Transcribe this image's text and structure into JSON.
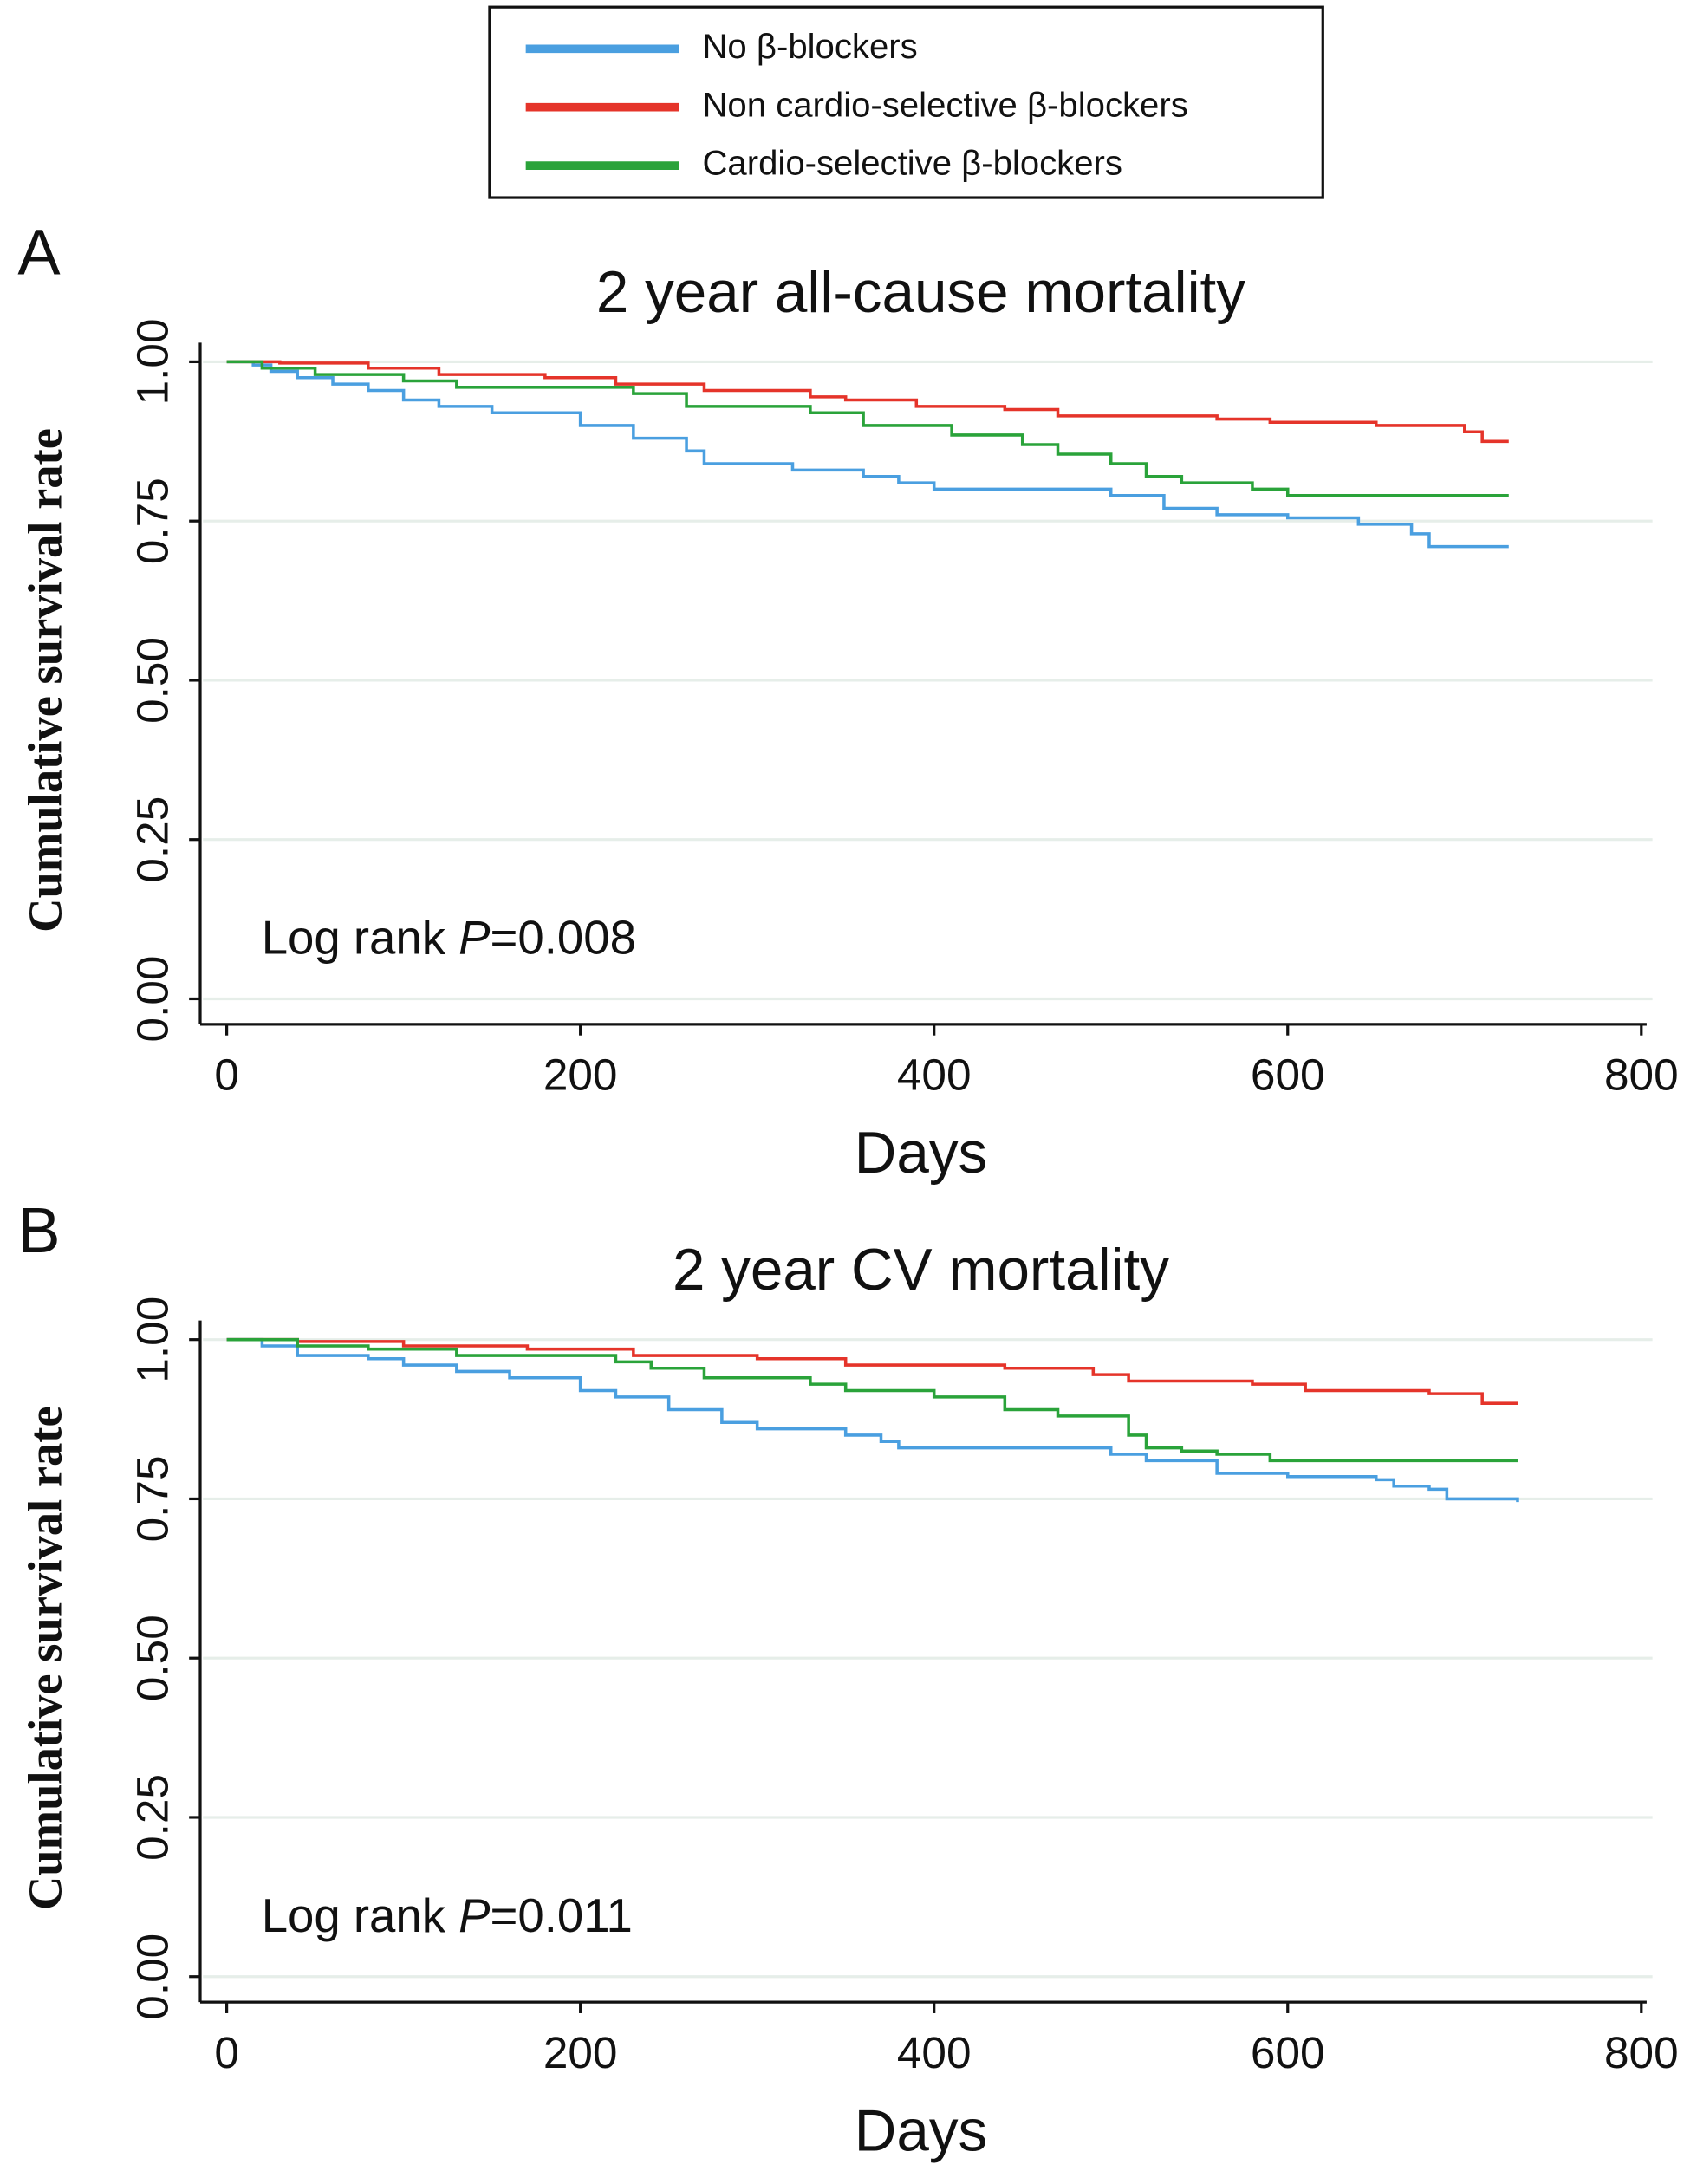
{
  "chart_data": [
    {
      "type": "line",
      "panel": "A",
      "title": "2 year all-cause mortality",
      "xlabel": "Days",
      "ylabel": "Cumulative survival rate",
      "annotation": {
        "prefix": "Log rank ",
        "italic": "P",
        "suffix": "=0.008"
      },
      "xlim": [
        -15,
        803
      ],
      "ylim": [
        -0.04,
        1.03
      ],
      "grid": true,
      "xticks": [
        0,
        200,
        400,
        600,
        800
      ],
      "yticks": [
        {
          "value": 0,
          "label": "0.00"
        },
        {
          "value": 0.25,
          "label": "0.25"
        },
        {
          "value": 0.5,
          "label": "0.50"
        },
        {
          "value": 0.75,
          "label": "0.75"
        },
        {
          "value": 1,
          "label": "1.00"
        }
      ],
      "series": [
        {
          "name": "No β-blockers",
          "color": "#4a9fe0",
          "x": [
            0,
            15,
            25,
            40,
            60,
            80,
            100,
            120,
            150,
            200,
            230,
            260,
            270,
            320,
            360,
            380,
            400,
            500,
            530,
            560,
            600,
            640,
            670,
            680,
            725
          ],
          "values": [
            1.0,
            0.995,
            0.985,
            0.975,
            0.965,
            0.955,
            0.94,
            0.93,
            0.92,
            0.9,
            0.88,
            0.86,
            0.84,
            0.83,
            0.82,
            0.81,
            0.8,
            0.79,
            0.77,
            0.76,
            0.755,
            0.745,
            0.73,
            0.71,
            0.71
          ]
        },
        {
          "name": "Non cardio-selective β-blockers",
          "color": "#e5342a",
          "x": [
            0,
            30,
            80,
            120,
            180,
            220,
            270,
            330,
            350,
            390,
            440,
            470,
            560,
            590,
            650,
            700,
            710,
            725
          ],
          "values": [
            1.0,
            0.998,
            0.99,
            0.98,
            0.975,
            0.965,
            0.955,
            0.945,
            0.94,
            0.93,
            0.925,
            0.915,
            0.91,
            0.905,
            0.9,
            0.89,
            0.875,
            0.875
          ]
        },
        {
          "name": "Cardio-selective β-blockers",
          "color": "#2aa33a",
          "x": [
            0,
            20,
            50,
            100,
            130,
            230,
            260,
            330,
            360,
            410,
            450,
            470,
            500,
            520,
            540,
            580,
            600,
            725
          ],
          "values": [
            1.0,
            0.99,
            0.98,
            0.97,
            0.96,
            0.95,
            0.93,
            0.92,
            0.9,
            0.885,
            0.87,
            0.855,
            0.84,
            0.82,
            0.81,
            0.8,
            0.79,
            0.79
          ]
        }
      ]
    },
    {
      "type": "line",
      "panel": "B",
      "title": "2 year CV mortality",
      "xlabel": "Days",
      "ylabel": "Cumulative survival rate",
      "annotation": {
        "prefix": "Log rank ",
        "italic": "P",
        "suffix": "=0.011"
      },
      "xlim": [
        -15,
        803
      ],
      "ylim": [
        -0.04,
        1.03
      ],
      "grid": true,
      "xticks": [
        0,
        200,
        400,
        600,
        800
      ],
      "yticks": [
        {
          "value": 0,
          "label": "0.00"
        },
        {
          "value": 0.25,
          "label": "0.25"
        },
        {
          "value": 0.5,
          "label": "0.50"
        },
        {
          "value": 0.75,
          "label": "0.75"
        },
        {
          "value": 1,
          "label": "1.00"
        }
      ],
      "series": [
        {
          "color": "#4a9fe0",
          "x": [
            0,
            20,
            40,
            80,
            100,
            130,
            160,
            200,
            220,
            250,
            280,
            300,
            350,
            370,
            380,
            500,
            520,
            560,
            600,
            650,
            660,
            680,
            690,
            730
          ],
          "values": [
            1.0,
            0.99,
            0.975,
            0.97,
            0.96,
            0.95,
            0.94,
            0.92,
            0.91,
            0.89,
            0.87,
            0.86,
            0.85,
            0.84,
            0.83,
            0.82,
            0.81,
            0.79,
            0.785,
            0.78,
            0.77,
            0.765,
            0.75,
            0.745
          ]
        },
        {
          "color": "#e5342a",
          "x": [
            0,
            40,
            100,
            170,
            230,
            300,
            350,
            440,
            490,
            510,
            580,
            610,
            680,
            710,
            730
          ],
          "values": [
            1.0,
            0.997,
            0.99,
            0.985,
            0.975,
            0.97,
            0.96,
            0.955,
            0.945,
            0.935,
            0.93,
            0.92,
            0.915,
            0.9,
            0.9
          ]
        },
        {
          "color": "#2aa33a",
          "x": [
            0,
            40,
            80,
            130,
            220,
            240,
            270,
            330,
            350,
            400,
            440,
            470,
            510,
            520,
            540,
            560,
            590,
            730
          ],
          "values": [
            1.0,
            0.99,
            0.985,
            0.975,
            0.965,
            0.955,
            0.94,
            0.93,
            0.92,
            0.91,
            0.89,
            0.88,
            0.85,
            0.83,
            0.825,
            0.82,
            0.81,
            0.81
          ]
        }
      ]
    }
  ]
}
